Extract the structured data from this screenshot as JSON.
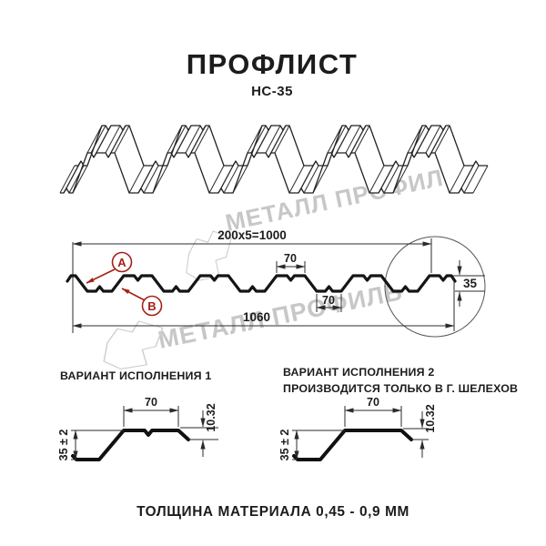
{
  "page": {
    "title": "ПРОФЛИСТ",
    "subtitle": "НС-35",
    "footer_note": "ТОЛЩИНА МАТЕРИАЛА 0,45 - 0,9 ММ"
  },
  "watermark": {
    "text": "МЕТАЛЛ ПРОФИЛЬ",
    "color": "#c7c7c7"
  },
  "main_drawing": {
    "dim_pitch_total": "200x5=1000",
    "dim_overall_width": "1060",
    "dim_crest_width": "70",
    "dim_valley_width": "70",
    "dim_height": "35",
    "label_a": "A",
    "label_b": "B",
    "accent_color": "#a52017"
  },
  "variants": {
    "v1": {
      "heading": "ВАРИАНТ ИСПОЛНЕНИЯ 1",
      "dim_top_width": "70",
      "dim_height": "35 ± 2",
      "dim_lip": "10.32"
    },
    "v2": {
      "heading_line1": "ВАРИАНТ ИСПОЛНЕНИЯ 2",
      "heading_line2": "ПРОИЗВОДИТСЯ ТОЛЬКО В Г. ШЕЛЕХОВ",
      "dim_top_width": "70",
      "dim_height": "35 ± 2",
      "dim_lip": "10.32"
    }
  }
}
